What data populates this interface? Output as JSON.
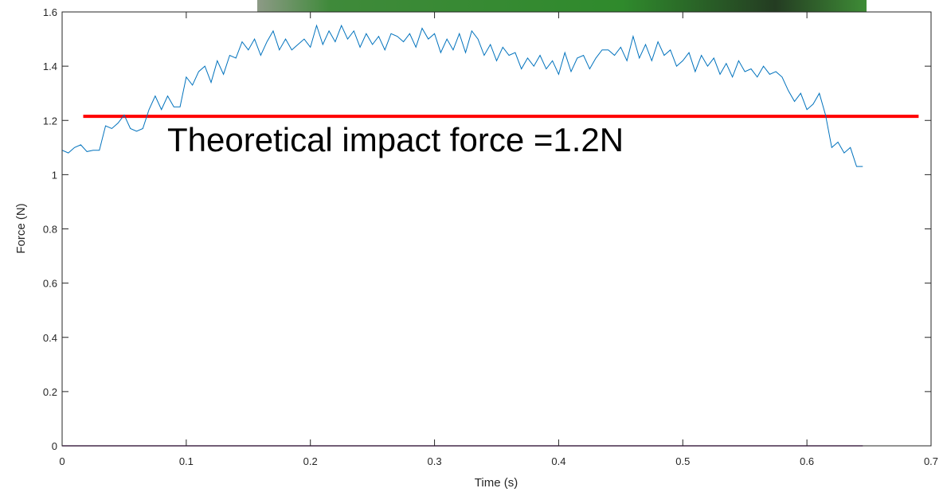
{
  "chart_data": {
    "type": "line",
    "xlabel": "Time (s)",
    "ylabel": "Force (N)",
    "annotation": "Theoretical impact force =1.2N",
    "xlim": [
      0,
      0.7
    ],
    "xticks": [
      0,
      0.1,
      0.2,
      0.3,
      0.4,
      0.5,
      0.6,
      0.7
    ],
    "ylim": [
      0,
      1.6
    ],
    "yticks": [
      0,
      0.2,
      0.4,
      0.6,
      0.8,
      1,
      1.2,
      1.4,
      1.6
    ],
    "series": [
      {
        "color": "#0072bd",
        "width": 1,
        "x": [
          0,
          0.005,
          0.01,
          0.015,
          0.02,
          0.025,
          0.03,
          0.035,
          0.04,
          0.045,
          0.05,
          0.055,
          0.06,
          0.065,
          0.07,
          0.075,
          0.08,
          0.085,
          0.09,
          0.095,
          0.1,
          0.105,
          0.11,
          0.115,
          0.12,
          0.125,
          0.13,
          0.135,
          0.14,
          0.145,
          0.15,
          0.155,
          0.16,
          0.165,
          0.17,
          0.175,
          0.18,
          0.185,
          0.19,
          0.195,
          0.2,
          0.205,
          0.21,
          0.215,
          0.22,
          0.225,
          0.23,
          0.235,
          0.24,
          0.245,
          0.25,
          0.255,
          0.26,
          0.265,
          0.27,
          0.275,
          0.28,
          0.285,
          0.29,
          0.295,
          0.3,
          0.305,
          0.31,
          0.315,
          0.32,
          0.325,
          0.33,
          0.335,
          0.34,
          0.345,
          0.35,
          0.355,
          0.36,
          0.365,
          0.37,
          0.375,
          0.38,
          0.385,
          0.39,
          0.395,
          0.4,
          0.405,
          0.41,
          0.415,
          0.42,
          0.425,
          0.43,
          0.435,
          0.44,
          0.445,
          0.45,
          0.455,
          0.46,
          0.465,
          0.47,
          0.475,
          0.48,
          0.485,
          0.49,
          0.495,
          0.5,
          0.505,
          0.51,
          0.515,
          0.52,
          0.525,
          0.53,
          0.535,
          0.54,
          0.545,
          0.55,
          0.555,
          0.56,
          0.565,
          0.57,
          0.575,
          0.58,
          0.585,
          0.59,
          0.595,
          0.6,
          0.605,
          0.61,
          0.615,
          0.62,
          0.625,
          0.63,
          0.635,
          0.64,
          0.645
        ],
        "values": [
          1.09,
          1.08,
          1.1,
          1.11,
          1.085,
          1.09,
          1.09,
          1.18,
          1.17,
          1.19,
          1.22,
          1.17,
          1.16,
          1.17,
          1.24,
          1.29,
          1.24,
          1.29,
          1.25,
          1.25,
          1.36,
          1.33,
          1.38,
          1.4,
          1.34,
          1.42,
          1.37,
          1.44,
          1.43,
          1.49,
          1.46,
          1.5,
          1.44,
          1.49,
          1.53,
          1.46,
          1.5,
          1.46,
          1.48,
          1.5,
          1.47,
          1.55,
          1.48,
          1.53,
          1.49,
          1.55,
          1.5,
          1.53,
          1.47,
          1.52,
          1.48,
          1.51,
          1.46,
          1.52,
          1.51,
          1.49,
          1.52,
          1.47,
          1.54,
          1.5,
          1.52,
          1.45,
          1.5,
          1.46,
          1.52,
          1.45,
          1.53,
          1.5,
          1.44,
          1.48,
          1.42,
          1.47,
          1.44,
          1.45,
          1.39,
          1.43,
          1.4,
          1.44,
          1.39,
          1.42,
          1.37,
          1.45,
          1.38,
          1.43,
          1.44,
          1.39,
          1.43,
          1.46,
          1.46,
          1.44,
          1.47,
          1.42,
          1.51,
          1.43,
          1.48,
          1.42,
          1.49,
          1.44,
          1.46,
          1.4,
          1.42,
          1.45,
          1.38,
          1.44,
          1.4,
          1.43,
          1.37,
          1.41,
          1.36,
          1.42,
          1.38,
          1.39,
          1.36,
          1.4,
          1.37,
          1.38,
          1.36,
          1.31,
          1.27,
          1.3,
          1.24,
          1.26,
          1.3,
          1.22,
          1.1,
          1.12,
          1.08,
          1.1,
          1.03,
          1.03
        ]
      },
      {
        "color": "#ff0000",
        "width": 4,
        "x": [
          0.017,
          0.69
        ],
        "values": [
          1.215,
          1.215
        ]
      },
      {
        "color": "#7e2f8e",
        "width": 1.5,
        "x": [
          0,
          0.645
        ],
        "values": [
          0,
          0
        ]
      }
    ]
  }
}
